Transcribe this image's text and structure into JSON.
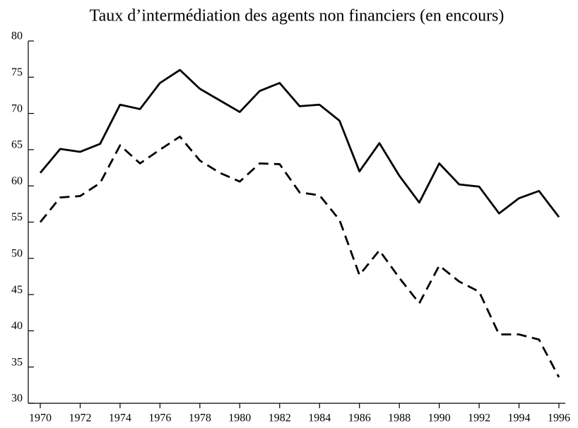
{
  "chart_data": {
    "type": "line",
    "title": "Taux d’intermédiation des agents non financiers (en encours)",
    "x": [
      1970,
      1971,
      1972,
      1973,
      1974,
      1975,
      1976,
      1977,
      1978,
      1979,
      1980,
      1981,
      1982,
      1983,
      1984,
      1985,
      1986,
      1987,
      1988,
      1989,
      1990,
      1991,
      1992,
      1993,
      1994,
      1995,
      1996
    ],
    "series": [
      {
        "color": "#000000",
        "style": "solid",
        "values": [
          61.8,
          65.1,
          64.7,
          65.8,
          71.2,
          70.6,
          74.2,
          76.0,
          73.4,
          71.8,
          70.2,
          73.1,
          74.2,
          71.0,
          71.2,
          69.0,
          62.0,
          65.9,
          61.4,
          57.7,
          63.1,
          60.2,
          59.9,
          56.2,
          58.3,
          59.3,
          55.7
        ]
      },
      {
        "color": "#000000",
        "style": "dashed",
        "values": [
          55.0,
          58.4,
          58.6,
          60.4,
          65.6,
          63.1,
          65.0,
          66.8,
          63.5,
          61.8,
          60.6,
          63.1,
          63.0,
          59.1,
          58.7,
          55.3,
          47.7,
          51.1,
          47.3,
          43.8,
          49.0,
          46.8,
          45.4,
          39.5,
          39.5,
          38.8,
          33.6
        ]
      }
    ],
    "xlim": [
      1970,
      1996
    ],
    "xticks": [
      1970,
      1972,
      1974,
      1976,
      1978,
      1980,
      1982,
      1984,
      1986,
      1988,
      1990,
      1992,
      1994,
      1996
    ],
    "ylim": [
      30,
      80
    ],
    "yticks": [
      30,
      35,
      40,
      45,
      50,
      55,
      60,
      65,
      70,
      75,
      80
    ]
  }
}
